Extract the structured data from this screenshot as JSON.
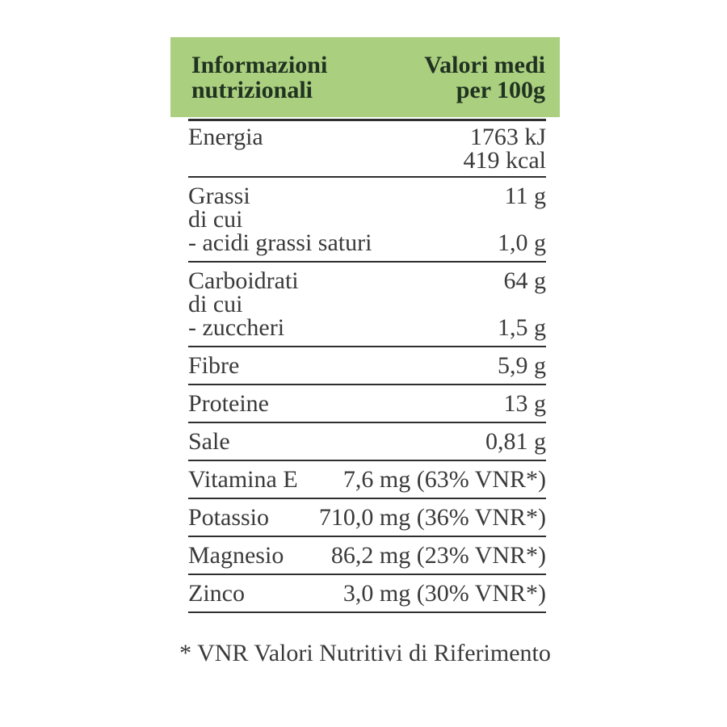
{
  "header": {
    "title": [
      "Informazioni",
      "nutrizionali"
    ],
    "values_heading": [
      "Valori medi",
      "per 100g"
    ]
  },
  "rows": [
    {
      "id": "energia",
      "lines": [
        {
          "label": "Energia",
          "value": "1763 kJ"
        },
        {
          "label": "",
          "value": "419 kcal"
        }
      ]
    },
    {
      "id": "grassi",
      "lines": [
        {
          "label": "Grassi",
          "value": "11 g"
        },
        {
          "label": "di cui",
          "value": ""
        },
        {
          "label": "- acidi grassi saturi",
          "value": "1,0 g"
        }
      ]
    },
    {
      "id": "carboidrati",
      "lines": [
        {
          "label": "Carboidrati",
          "value": "64 g"
        },
        {
          "label": "di cui",
          "value": ""
        },
        {
          "label": "- zuccheri",
          "value": "1,5 g"
        }
      ]
    },
    {
      "id": "fibre",
      "lines": [
        {
          "label": "Fibre",
          "value": "5,9 g"
        }
      ]
    },
    {
      "id": "proteine",
      "lines": [
        {
          "label": "Proteine",
          "value": "13 g"
        }
      ]
    },
    {
      "id": "sale",
      "lines": [
        {
          "label": "Sale",
          "value": "0,81 g"
        }
      ]
    },
    {
      "id": "vitamina-e",
      "lines": [
        {
          "label": "Vitamina E",
          "value": "7,6 mg (63% VNR*)"
        }
      ]
    },
    {
      "id": "potassio",
      "lines": [
        {
          "label": "Potassio",
          "value": "710,0 mg (36% VNR*)"
        }
      ]
    },
    {
      "id": "magnesio",
      "lines": [
        {
          "label": "Magnesio",
          "value": "86,2 mg (23% VNR*)"
        }
      ]
    },
    {
      "id": "zinco",
      "lines": [
        {
          "label": "Zinco",
          "value": "3,0 mg (30% VNR*)"
        }
      ]
    }
  ],
  "footnote": "* VNR Valori Nutritivi di Riferimento",
  "colors": {
    "header_bg": "#a9cf7f",
    "header_text": "#213221",
    "body_text": "#3a3a3a",
    "line": "#2f2f2f"
  }
}
